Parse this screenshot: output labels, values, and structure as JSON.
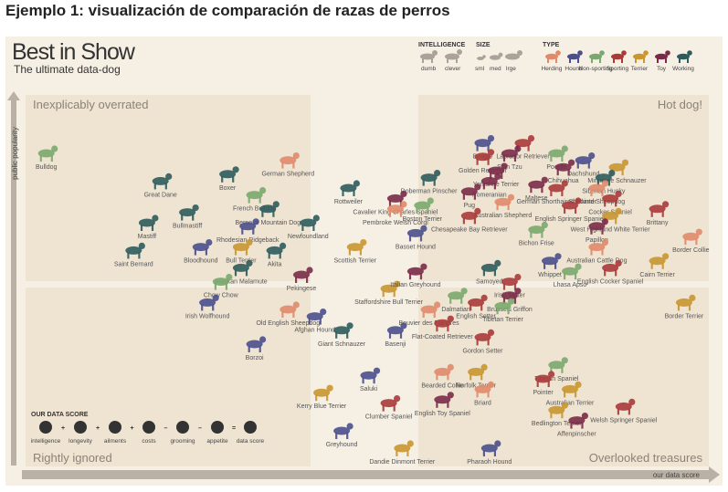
{
  "page_heading": "Ejemplo 1: visualización de comparación de razas de perros",
  "poster": {
    "title": "Best in Show",
    "subtitle": "The ultimate data-dog"
  },
  "legend": {
    "intelligence_label": "INTELLIGENCE",
    "intelligence_items": [
      "dumb",
      "clever"
    ],
    "size_label": "SIZE",
    "size_items": [
      "sml",
      "med",
      "lrge"
    ],
    "type_label": "TYPE",
    "type_items": [
      {
        "name": "Herding",
        "color": "#e08a6a"
      },
      {
        "name": "Hound",
        "color": "#4a4f8c"
      },
      {
        "name": "Non-sporting",
        "color": "#7aa86e"
      },
      {
        "name": "Sporting",
        "color": "#a83a3a"
      },
      {
        "name": "Terrier",
        "color": "#c9962f"
      },
      {
        "name": "Toy",
        "color": "#7a2a48"
      },
      {
        "name": "Working",
        "color": "#2d5b5c"
      }
    ]
  },
  "score_box": {
    "title": "OUR DATA SCORE",
    "items": [
      "intelligence",
      "longevity",
      "ailments",
      "costs",
      "grooming",
      "appetite",
      "data score"
    ],
    "operators": [
      "+",
      "+",
      "+",
      "–",
      "–",
      "="
    ]
  },
  "quadrants": {
    "top_left": "Inexplicably overrated",
    "top_right": "Hot dog!",
    "bottom_left": "Rightly ignored",
    "bottom_right": "Overlooked treasures"
  },
  "chart_data": {
    "type": "scatter",
    "title": "Best in Show",
    "subtitle": "The ultimate data-dog",
    "xlabel": "our data score",
    "ylabel": "public popularity",
    "xlim": [
      0,
      1
    ],
    "ylim": [
      0,
      1
    ],
    "grid": false,
    "legend_placement": "top-right",
    "series": [
      {
        "values": [
          {
            "name": "Bulldog",
            "x": 0.02,
            "y": 0.9,
            "type": "Non-sporting"
          },
          {
            "name": "Great Dane",
            "x": 0.19,
            "y": 0.82,
            "type": "Working"
          },
          {
            "name": "Boxer",
            "x": 0.29,
            "y": 0.84,
            "type": "Working"
          },
          {
            "name": "German Shepherd",
            "x": 0.38,
            "y": 0.88,
            "type": "Herding"
          },
          {
            "name": "French Bulldog",
            "x": 0.33,
            "y": 0.78,
            "type": "Non-sporting"
          },
          {
            "name": "Mastiff",
            "x": 0.17,
            "y": 0.7,
            "type": "Working"
          },
          {
            "name": "Bullmastiff",
            "x": 0.23,
            "y": 0.73,
            "type": "Working"
          },
          {
            "name": "Bernese Mountain Dog",
            "x": 0.35,
            "y": 0.74,
            "type": "Working"
          },
          {
            "name": "Rhodesian Ridgeback",
            "x": 0.32,
            "y": 0.69,
            "type": "Hound"
          },
          {
            "name": "Newfoundland",
            "x": 0.41,
            "y": 0.7,
            "type": "Working"
          },
          {
            "name": "Saint Bernard",
            "x": 0.15,
            "y": 0.62,
            "type": "Working"
          },
          {
            "name": "Bloodhound",
            "x": 0.25,
            "y": 0.63,
            "type": "Hound"
          },
          {
            "name": "Bull Terrier",
            "x": 0.31,
            "y": 0.63,
            "type": "Terrier"
          },
          {
            "name": "Akita",
            "x": 0.36,
            "y": 0.62,
            "type": "Working"
          },
          {
            "name": "Alaskan Malamute",
            "x": 0.31,
            "y": 0.57,
            "type": "Working"
          },
          {
            "name": "Chow Chow",
            "x": 0.28,
            "y": 0.53,
            "type": "Non-sporting"
          },
          {
            "name": "Pekingese",
            "x": 0.4,
            "y": 0.55,
            "type": "Toy"
          },
          {
            "name": "Rottweiler",
            "x": 0.47,
            "y": 0.8,
            "type": "Working"
          },
          {
            "name": "Doberman Pinscher",
            "x": 0.59,
            "y": 0.83,
            "type": "Working"
          },
          {
            "name": "Cavalier King Charles Spaniel",
            "x": 0.54,
            "y": 0.77,
            "type": "Toy"
          },
          {
            "name": "Pembroke Welsh Corgi",
            "x": 0.54,
            "y": 0.74,
            "type": "Herding"
          },
          {
            "name": "Boston Terrier",
            "x": 0.58,
            "y": 0.75,
            "type": "Non-sporting"
          },
          {
            "name": "Scottish Terrier",
            "x": 0.48,
            "y": 0.63,
            "type": "Terrier"
          },
          {
            "name": "Basset Hound",
            "x": 0.57,
            "y": 0.67,
            "type": "Hound"
          },
          {
            "name": "Irish Wolfhound",
            "x": 0.26,
            "y": 0.47,
            "type": "Hound"
          },
          {
            "name": "Old English Sheepdog",
            "x": 0.38,
            "y": 0.45,
            "type": "Herding"
          },
          {
            "name": "Afghan Hound",
            "x": 0.42,
            "y": 0.43,
            "type": "Hound"
          },
          {
            "name": "Staffordshire Bull Terrier",
            "x": 0.53,
            "y": 0.51,
            "type": "Terrier"
          },
          {
            "name": "Giant Schnauzer",
            "x": 0.46,
            "y": 0.39,
            "type": "Working"
          },
          {
            "name": "Borzoi",
            "x": 0.33,
            "y": 0.35,
            "type": "Hound"
          },
          {
            "name": "Kerry Blue Terrier",
            "x": 0.43,
            "y": 0.21,
            "type": "Terrier"
          },
          {
            "name": "Italian Greyhound",
            "x": 0.57,
            "y": 0.56,
            "type": "Toy"
          },
          {
            "name": "Basenji",
            "x": 0.54,
            "y": 0.39,
            "type": "Hound"
          },
          {
            "name": "Saluki",
            "x": 0.5,
            "y": 0.26,
            "type": "Hound"
          },
          {
            "name": "Clumber Spaniel",
            "x": 0.53,
            "y": 0.18,
            "type": "Sporting"
          },
          {
            "name": "Greyhound",
            "x": 0.46,
            "y": 0.1,
            "type": "Hound"
          },
          {
            "name": "Dandie Dinmont Terrier",
            "x": 0.55,
            "y": 0.05,
            "type": "Terrier"
          },
          {
            "name": "Beagle",
            "x": 0.67,
            "y": 0.93,
            "type": "Hound"
          },
          {
            "name": "Labrador Retriever",
            "x": 0.73,
            "y": 0.93,
            "type": "Sporting"
          },
          {
            "name": "Golden Retriever",
            "x": 0.67,
            "y": 0.89,
            "type": "Sporting"
          },
          {
            "name": "Shih Tzu",
            "x": 0.71,
            "y": 0.9,
            "type": "Toy"
          },
          {
            "name": "Poodle",
            "x": 0.78,
            "y": 0.9,
            "type": "Non-sporting"
          },
          {
            "name": "Dachshund",
            "x": 0.82,
            "y": 0.88,
            "type": "Hound"
          },
          {
            "name": "Chihuahua",
            "x": 0.79,
            "y": 0.86,
            "type": "Toy"
          },
          {
            "name": "Miniature Schnauzer",
            "x": 0.87,
            "y": 0.86,
            "type": "Terrier"
          },
          {
            "name": "Yorkshire Terrier",
            "x": 0.69,
            "y": 0.85,
            "type": "Toy"
          },
          {
            "name": "Pomeranian",
            "x": 0.68,
            "y": 0.82,
            "type": "Toy"
          },
          {
            "name": "Pug",
            "x": 0.65,
            "y": 0.79,
            "type": "Toy"
          },
          {
            "name": "Maltese",
            "x": 0.75,
            "y": 0.81,
            "type": "Toy"
          },
          {
            "name": "German Shorthaired Pointer",
            "x": 0.78,
            "y": 0.8,
            "type": "Sporting"
          },
          {
            "name": "Siberian Husky",
            "x": 0.85,
            "y": 0.83,
            "type": "Working"
          },
          {
            "name": "Shetland Sheepdog",
            "x": 0.84,
            "y": 0.8,
            "type": "Herding"
          },
          {
            "name": "Australian Shepherd",
            "x": 0.7,
            "y": 0.76,
            "type": "Herding"
          },
          {
            "name": "English Springer Spaniel",
            "x": 0.8,
            "y": 0.75,
            "type": "Sporting"
          },
          {
            "name": "Cocker Spaniel",
            "x": 0.86,
            "y": 0.77,
            "type": "Sporting"
          },
          {
            "name": "Chesapeake Bay Retriever",
            "x": 0.65,
            "y": 0.72,
            "type": "Sporting"
          },
          {
            "name": "West Highland White Terrier",
            "x": 0.86,
            "y": 0.72,
            "type": "Terrier"
          },
          {
            "name": "Brittany",
            "x": 0.93,
            "y": 0.74,
            "type": "Sporting"
          },
          {
            "name": "Bichon Frise",
            "x": 0.75,
            "y": 0.68,
            "type": "Non-sporting"
          },
          {
            "name": "Papillon",
            "x": 0.84,
            "y": 0.69,
            "type": "Toy"
          },
          {
            "name": "Border Collie",
            "x": 0.98,
            "y": 0.66,
            "type": "Herding"
          },
          {
            "name": "Australian Cattle Dog",
            "x": 0.84,
            "y": 0.63,
            "type": "Herding"
          },
          {
            "name": "Cairn Terrier",
            "x": 0.93,
            "y": 0.59,
            "type": "Terrier"
          },
          {
            "name": "Whippet",
            "x": 0.77,
            "y": 0.59,
            "type": "Hound"
          },
          {
            "name": "Lhasa Apso",
            "x": 0.8,
            "y": 0.56,
            "type": "Non-sporting"
          },
          {
            "name": "English Cocker Spaniel",
            "x": 0.86,
            "y": 0.57,
            "type": "Sporting"
          },
          {
            "name": "Samoyed",
            "x": 0.68,
            "y": 0.57,
            "type": "Working"
          },
          {
            "name": "Irish Setter",
            "x": 0.71,
            "y": 0.53,
            "type": "Sporting"
          },
          {
            "name": "Brussels Griffon",
            "x": 0.71,
            "y": 0.49,
            "type": "Toy"
          },
          {
            "name": "Dalmatian",
            "x": 0.63,
            "y": 0.49,
            "type": "Non-sporting"
          },
          {
            "name": "Bouvier des Flandres",
            "x": 0.59,
            "y": 0.45,
            "type": "Herding"
          },
          {
            "name": "English Setter",
            "x": 0.66,
            "y": 0.47,
            "type": "Sporting"
          },
          {
            "name": "Tibetan Terrier",
            "x": 0.7,
            "y": 0.46,
            "type": "Non-sporting"
          },
          {
            "name": "Flat-Coated Retriever",
            "x": 0.61,
            "y": 0.41,
            "type": "Sporting"
          },
          {
            "name": "Gordon Setter",
            "x": 0.67,
            "y": 0.37,
            "type": "Sporting"
          },
          {
            "name": "Border Terrier",
            "x": 0.97,
            "y": 0.47,
            "type": "Terrier"
          },
          {
            "name": "Bearded Collie",
            "x": 0.61,
            "y": 0.27,
            "type": "Herding"
          },
          {
            "name": "Norfolk Terrier",
            "x": 0.66,
            "y": 0.27,
            "type": "Terrier"
          },
          {
            "name": "Briard",
            "x": 0.67,
            "y": 0.22,
            "type": "Herding"
          },
          {
            "name": "English Toy Spaniel",
            "x": 0.61,
            "y": 0.19,
            "type": "Toy"
          },
          {
            "name": "Tibetan Spaniel",
            "x": 0.78,
            "y": 0.29,
            "type": "Non-sporting"
          },
          {
            "name": "Pointer",
            "x": 0.76,
            "y": 0.25,
            "type": "Sporting"
          },
          {
            "name": "Australian Terrier",
            "x": 0.8,
            "y": 0.22,
            "type": "Terrier"
          },
          {
            "name": "Welsh Springer Spaniel",
            "x": 0.88,
            "y": 0.17,
            "type": "Sporting"
          },
          {
            "name": "Bedlington Terrier",
            "x": 0.78,
            "y": 0.16,
            "type": "Terrier"
          },
          {
            "name": "Affenpinscher",
            "x": 0.81,
            "y": 0.13,
            "type": "Toy"
          },
          {
            "name": "Pharaoh Hound",
            "x": 0.68,
            "y": 0.05,
            "type": "Hound"
          }
        ]
      }
    ]
  }
}
